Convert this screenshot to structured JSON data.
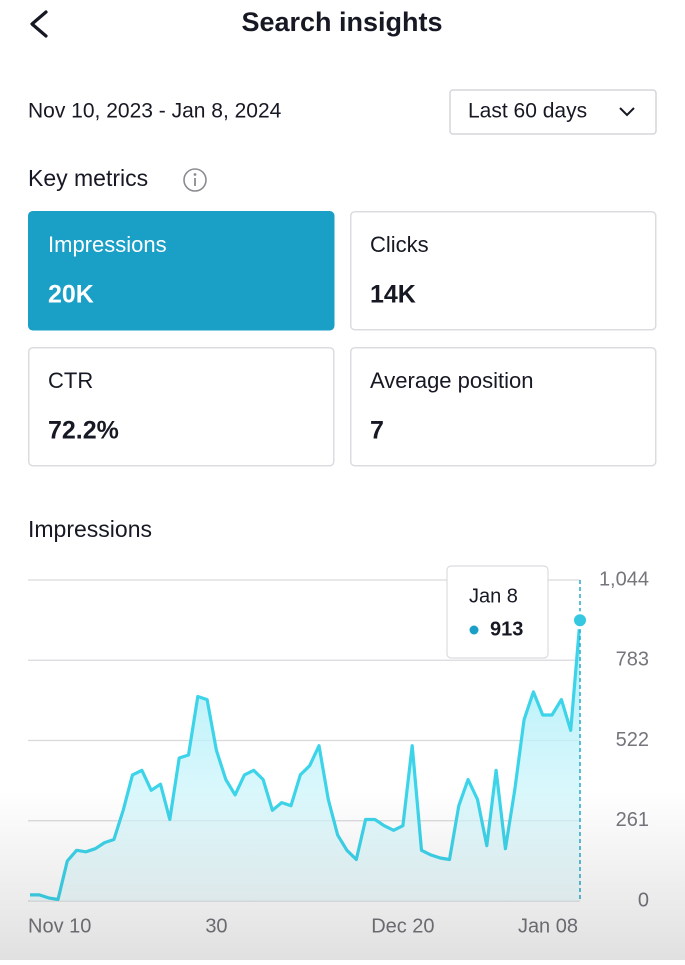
{
  "header": {
    "title": "Search insights"
  },
  "date_range": "Nov 10, 2023 - Jan 8, 2024",
  "period_selector": "Last 60 days",
  "key_metrics": {
    "title": "Key metrics",
    "cards": [
      {
        "label": "Impressions",
        "value": "20K"
      },
      {
        "label": "Clicks",
        "value": "14K"
      },
      {
        "label": "CTR",
        "value": "72.2%"
      },
      {
        "label": "Average position",
        "value": "7"
      }
    ]
  },
  "chart_data": {
    "type": "area",
    "title": "Impressions",
    "categories": [
      "Nov 10",
      null,
      null,
      null,
      null,
      null,
      null,
      null,
      null,
      null,
      null,
      null,
      null,
      null,
      null,
      null,
      null,
      null,
      null,
      null,
      "30",
      null,
      null,
      null,
      null,
      null,
      null,
      null,
      null,
      null,
      null,
      null,
      null,
      null,
      null,
      null,
      null,
      null,
      null,
      null,
      "Dec 20",
      null,
      null,
      null,
      null,
      null,
      null,
      null,
      null,
      null,
      null,
      null,
      null,
      null,
      null,
      null,
      null,
      null,
      null,
      "Jan 08"
    ],
    "values": [
      20,
      20,
      10,
      5,
      130,
      165,
      160,
      170,
      190,
      200,
      295,
      410,
      425,
      360,
      380,
      265,
      465,
      475,
      665,
      655,
      490,
      395,
      345,
      410,
      425,
      395,
      295,
      320,
      310,
      410,
      440,
      505,
      330,
      215,
      165,
      135,
      265,
      265,
      245,
      230,
      245,
      505,
      165,
      150,
      140,
      135,
      310,
      395,
      330,
      180,
      425,
      170,
      360,
      590,
      680,
      605,
      605,
      655,
      555,
      913
    ],
    "color": "#3dd4ea",
    "ylim": [
      0,
      1044
    ],
    "yticks": [
      0,
      261,
      522,
      783,
      {
        "value": 1044,
        "label": "1,044"
      }
    ],
    "grid": true,
    "tooltip": {
      "label": "Jan 8",
      "value": 913
    }
  }
}
